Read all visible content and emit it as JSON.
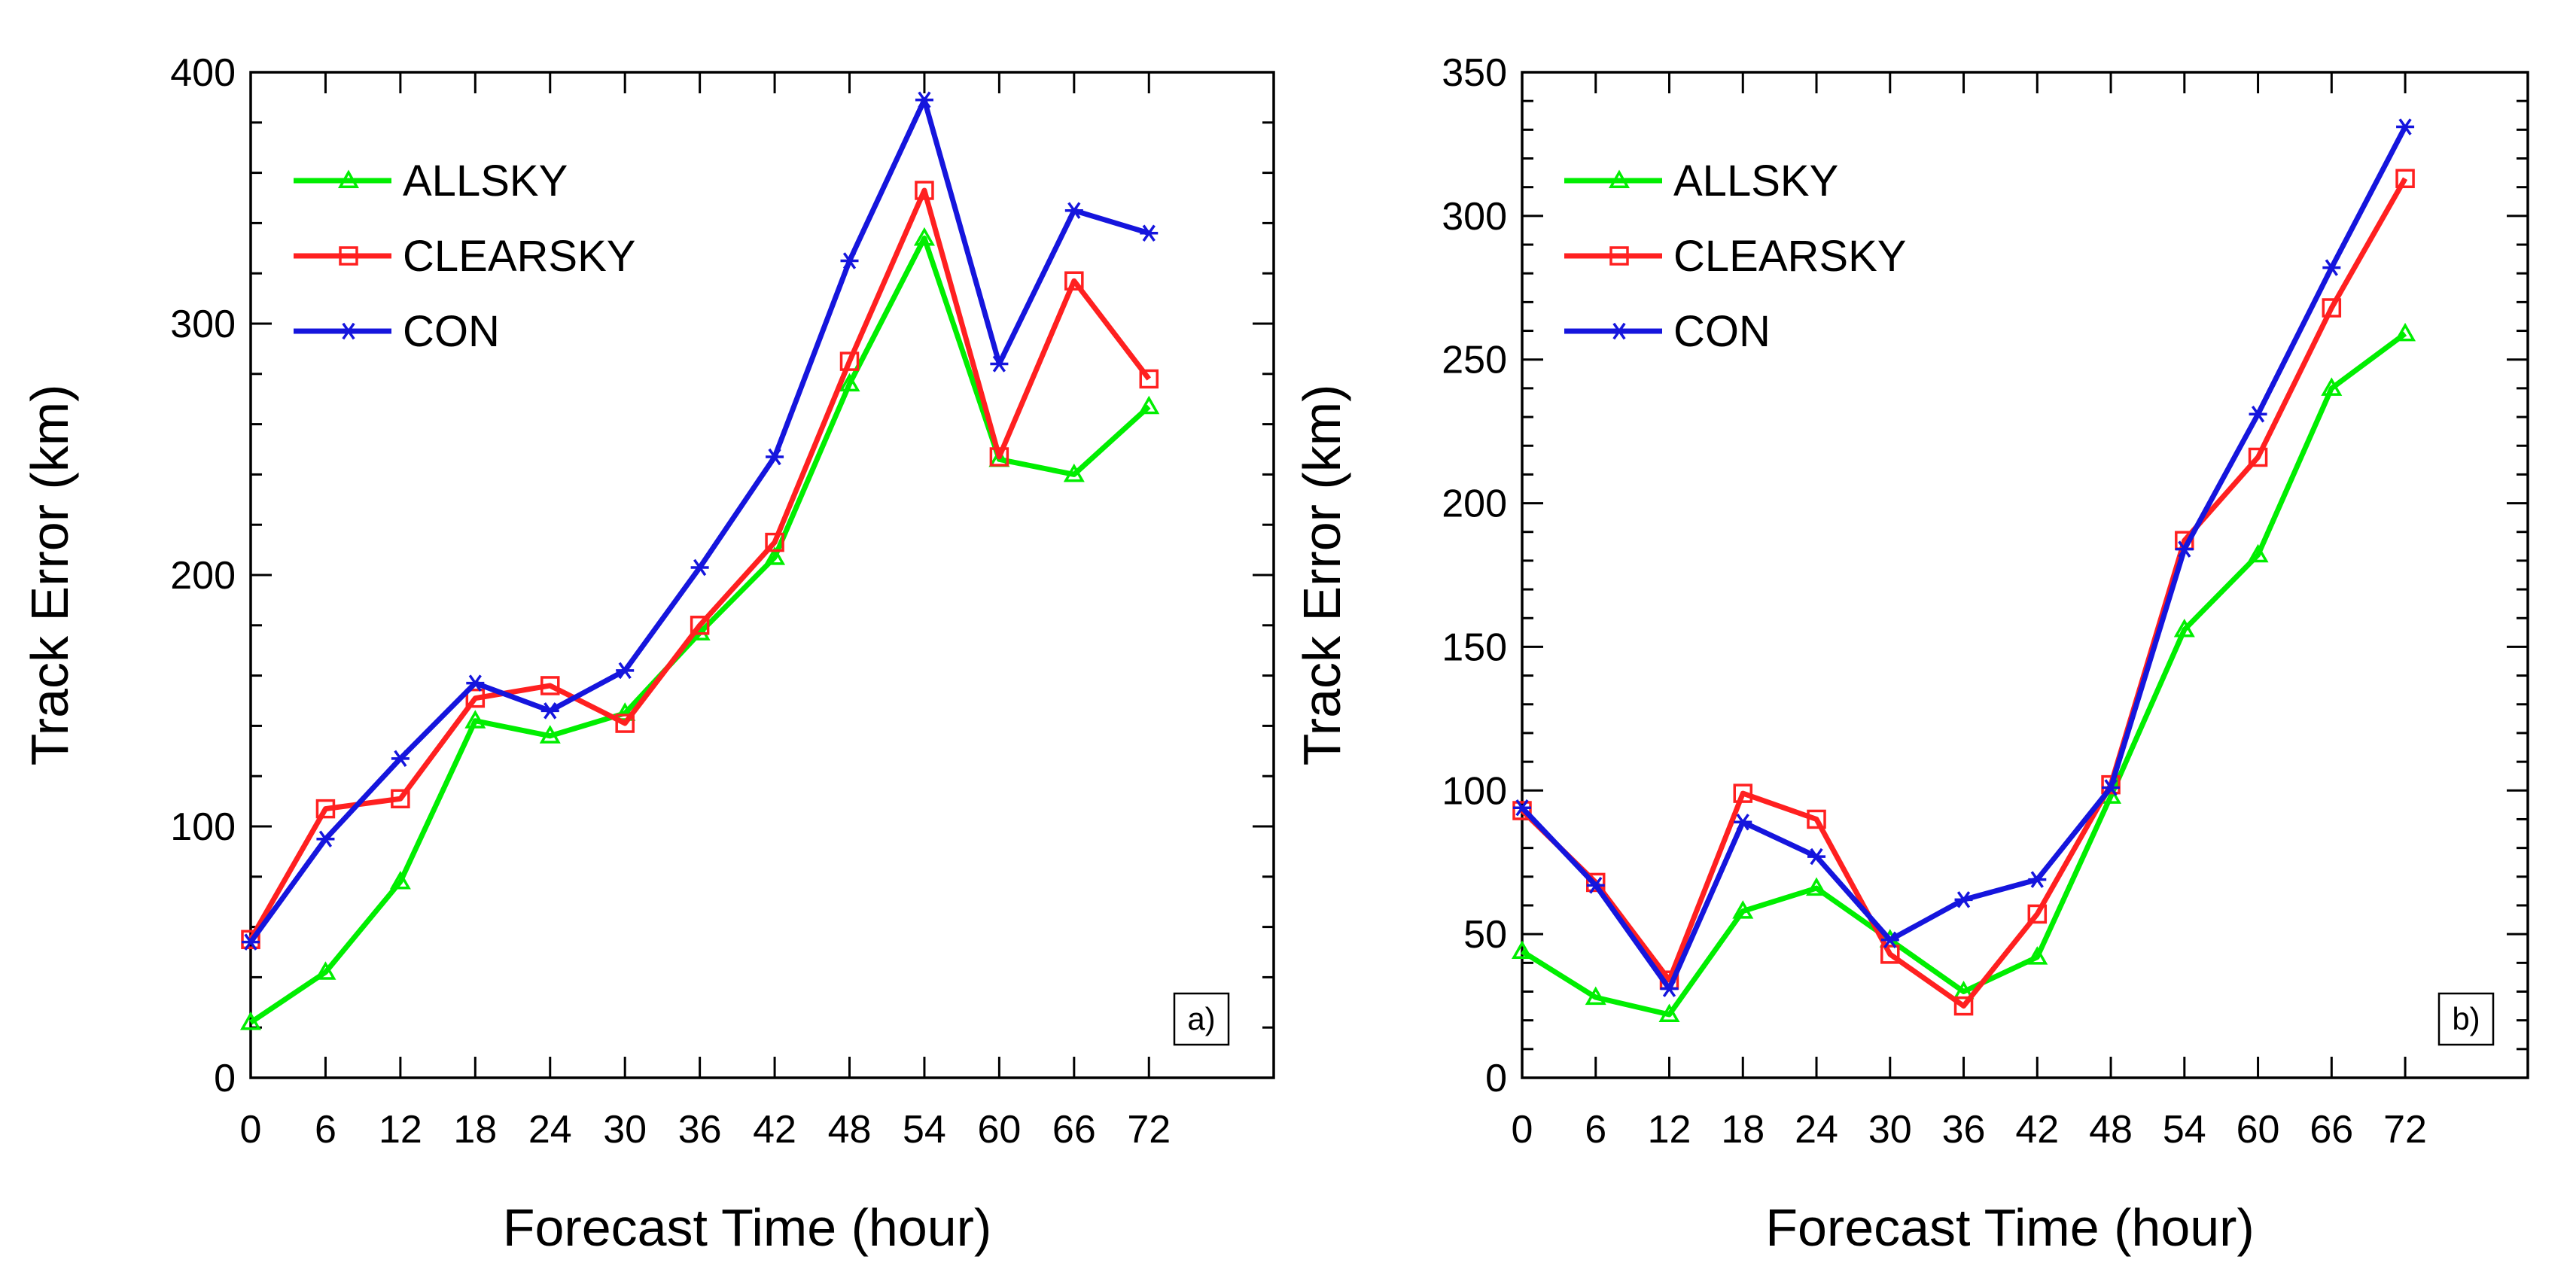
{
  "chart_data": [
    {
      "type": "line",
      "panel_label": "a)",
      "xlabel": "Forecast Time (hour)",
      "ylabel": "Track Error (km)",
      "x": [
        0,
        6,
        12,
        18,
        24,
        30,
        36,
        42,
        48,
        54,
        60,
        66,
        72
      ],
      "xlim": [
        0,
        82
      ],
      "ylim": [
        0,
        400
      ],
      "xticks": [
        0,
        6,
        12,
        18,
        24,
        30,
        36,
        42,
        48,
        54,
        60,
        66,
        72
      ],
      "xtick_labels": [
        "0",
        "6",
        "12",
        "18",
        "24",
        "30",
        "36",
        "42",
        "48",
        "54",
        "60",
        "66",
        "72"
      ],
      "yticks": [
        0,
        100,
        200,
        300,
        400
      ],
      "ytick_labels": [
        "0",
        "100",
        "200",
        "300",
        "400"
      ],
      "y_minor_step": 20,
      "legend_position": "top-left",
      "series": [
        {
          "name": "ALLSKY",
          "color": "#00ee00",
          "marker": "triangle",
          "values": [
            22,
            42,
            78,
            142,
            136,
            145,
            177,
            207,
            276,
            334,
            246,
            240,
            267
          ]
        },
        {
          "name": "CLEARSKY",
          "color": "#ff2020",
          "marker": "square",
          "values": [
            55,
            107,
            111,
            151,
            156,
            141,
            180,
            213,
            285,
            353,
            247,
            317,
            278
          ]
        },
        {
          "name": "CON",
          "color": "#1515dd",
          "marker": "asterisk",
          "values": [
            54,
            95,
            127,
            157,
            146,
            162,
            203,
            247,
            325,
            389,
            284,
            345,
            336
          ]
        }
      ]
    },
    {
      "type": "line",
      "panel_label": "b)",
      "xlabel": "Forecast Time (hour)",
      "ylabel": "Track Error (km)",
      "x": [
        0,
        6,
        12,
        18,
        24,
        30,
        36,
        42,
        48,
        54,
        60,
        66,
        72
      ],
      "xlim": [
        0,
        82
      ],
      "ylim": [
        0,
        350
      ],
      "xticks": [
        0,
        6,
        12,
        18,
        24,
        30,
        36,
        42,
        48,
        54,
        60,
        66,
        72
      ],
      "xtick_labels": [
        "0",
        "6",
        "12",
        "18",
        "24",
        "30",
        "36",
        "42",
        "48",
        "54",
        "60",
        "66",
        "72"
      ],
      "yticks": [
        0,
        50,
        100,
        150,
        200,
        250,
        300,
        350
      ],
      "ytick_labels": [
        "0",
        "50",
        "100",
        "150",
        "200",
        "250",
        "300",
        "350"
      ],
      "y_minor_step": 10,
      "legend_position": "top-left",
      "series": [
        {
          "name": "ALLSKY",
          "color": "#00ee00",
          "marker": "triangle",
          "values": [
            44,
            28,
            22,
            58,
            66,
            48,
            30,
            42,
            98,
            156,
            182,
            240,
            259
          ]
        },
        {
          "name": "CLEARSKY",
          "color": "#ff2020",
          "marker": "square",
          "values": [
            93,
            68,
            34,
            99,
            90,
            43,
            25,
            57,
            102,
            187,
            216,
            268,
            313
          ]
        },
        {
          "name": "CON",
          "color": "#1515dd",
          "marker": "asterisk",
          "values": [
            94,
            67,
            31,
            89,
            77,
            48,
            62,
            69,
            101,
            184,
            231,
            282,
            331
          ]
        }
      ]
    }
  ]
}
